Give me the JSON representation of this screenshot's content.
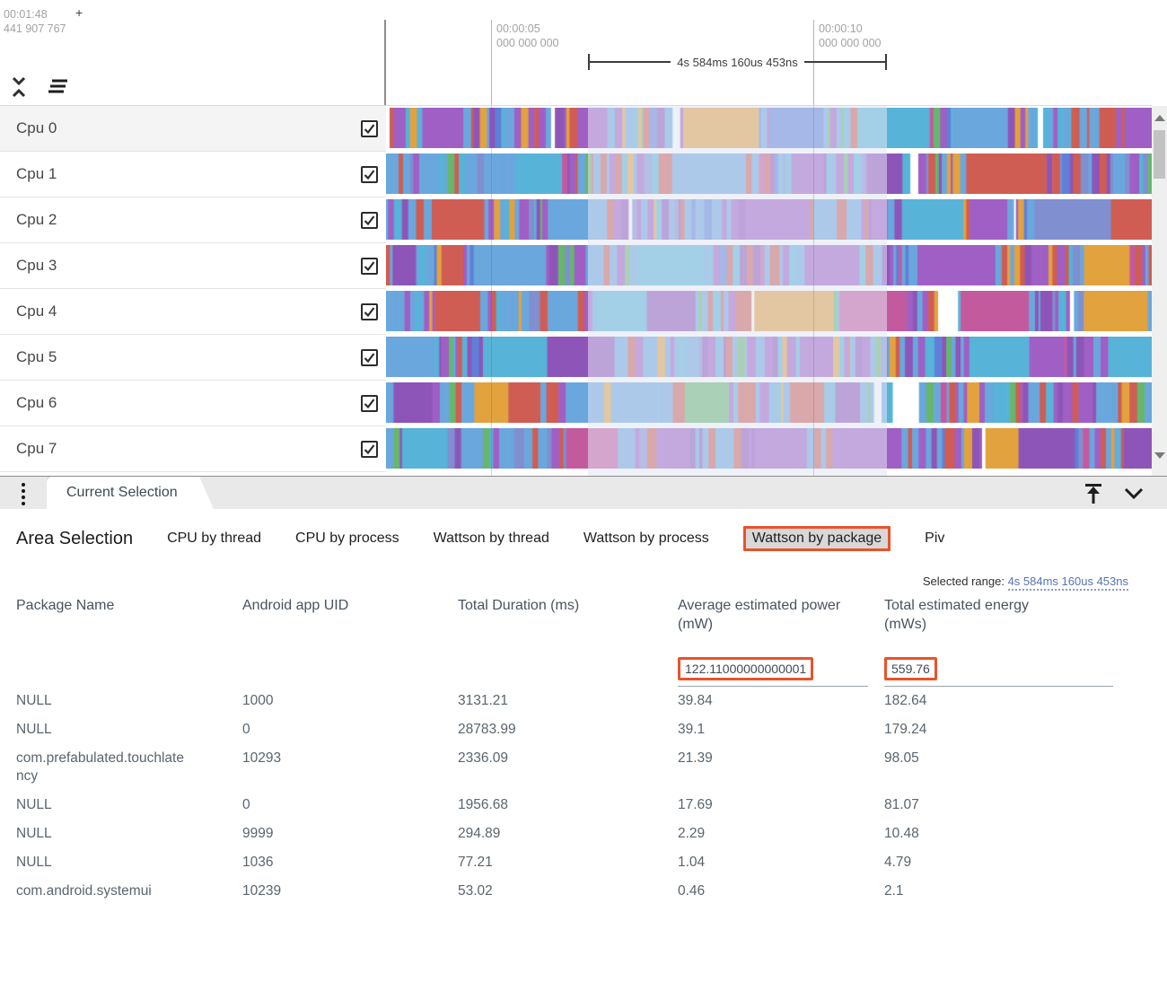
{
  "colors": {
    "accent_orange": "#e8532a",
    "range_link_blue": "#5872b5"
  },
  "timeline": {
    "offset_time": "00:01:48",
    "offset_plus": "+",
    "offset_ns": "441 907 767",
    "ticks": [
      {
        "time": "00:00:05",
        "ns": "000 000 000"
      },
      {
        "time": "00:00:10",
        "ns": "000 000 000"
      }
    ],
    "range_label": "4s 584ms 160us 453ns"
  },
  "tracks": [
    {
      "label": "Cpu 0",
      "checked": true,
      "highlighted": true
    },
    {
      "label": "Cpu 1",
      "checked": true
    },
    {
      "label": "Cpu 2",
      "checked": true
    },
    {
      "label": "Cpu 3",
      "checked": true
    },
    {
      "label": "Cpu 4",
      "checked": true
    },
    {
      "label": "Cpu 5",
      "checked": true
    },
    {
      "label": "Cpu 6",
      "checked": true
    },
    {
      "label": "Cpu 7",
      "checked": true
    }
  ],
  "track_palette": [
    {
      "color": "#6aa7dd",
      "weight": 0.3
    },
    {
      "color": "#57b3d8",
      "weight": 0.1
    },
    {
      "color": "#a05fc4",
      "weight": 0.17
    },
    {
      "color": "#8e55b8",
      "weight": 0.07
    },
    {
      "color": "#cf5d53",
      "weight": 0.13
    },
    {
      "color": "#e2a23e",
      "weight": 0.07
    },
    {
      "color": "#67b66d",
      "weight": 0.04
    },
    {
      "color": "#c45a9e",
      "weight": 0.03
    },
    {
      "color": "#7f8fd0",
      "weight": 0.04
    },
    {
      "color": "#ffffff",
      "weight": 0.02
    },
    {
      "color": "#5e80d8",
      "weight": 0.03
    }
  ],
  "panel": {
    "tab_label": "Current Selection"
  },
  "selection": {
    "title": "Area Selection",
    "tabs": [
      {
        "label": "CPU by thread",
        "active": false
      },
      {
        "label": "CPU by process",
        "active": false
      },
      {
        "label": "Wattson by thread",
        "active": false
      },
      {
        "label": "Wattson by process",
        "active": false
      },
      {
        "label": "Wattson by package",
        "active": true
      },
      {
        "label": "Piv",
        "active": false
      }
    ],
    "selected_range_label": "Selected range: ",
    "selected_range_value": "4s 584ms 160us 453ns"
  },
  "table": {
    "columns": [
      "Package Name",
      "Android app UID",
      "Total Duration (ms)",
      "Average estimated power (mW)",
      "Total estimated energy (mWs)"
    ],
    "summary": {
      "avg_power": "122.11000000000001",
      "total_energy": "559.76"
    },
    "rows": [
      [
        "NULL",
        "1000",
        "3131.21",
        "39.84",
        "182.64"
      ],
      [
        "NULL",
        "0",
        "28783.99",
        "39.1",
        "179.24"
      ],
      [
        "com.prefabulated.touchlatency",
        "10293",
        "2336.09",
        "21.39",
        "98.05"
      ],
      [
        "NULL",
        "0",
        "1956.68",
        "17.69",
        "81.07"
      ],
      [
        "NULL",
        "9999",
        "294.89",
        "2.29",
        "10.48"
      ],
      [
        "NULL",
        "1036",
        "77.21",
        "1.04",
        "4.79"
      ],
      [
        "com.android.systemui",
        "10239",
        "53.02",
        "0.46",
        "2.1"
      ]
    ]
  }
}
